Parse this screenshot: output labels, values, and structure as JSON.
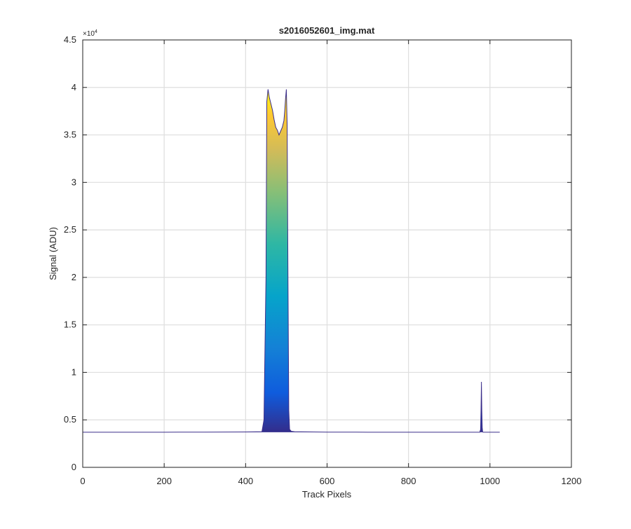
{
  "chart_data": {
    "type": "area",
    "title": "s2016052601_img.mat",
    "xlabel": "Track Pixels",
    "ylabel": "Signal (ADU)",
    "xlim": [
      0,
      1200
    ],
    "ylim": [
      0,
      45000
    ],
    "y_exponent_label": "×10",
    "y_exponent_power": "4",
    "xticks": [
      0,
      200,
      400,
      600,
      800,
      1000,
      1200
    ],
    "xtick_labels": [
      "0",
      "200",
      "400",
      "600",
      "800",
      "1000",
      "1200"
    ],
    "yticks": [
      0,
      5000,
      10000,
      15000,
      20000,
      25000,
      30000,
      35000,
      40000,
      45000
    ],
    "ytick_labels": [
      "0",
      "0.5",
      "1",
      "1.5",
      "2",
      "2.5",
      "3",
      "3.5",
      "4",
      "4.5"
    ],
    "grid": true,
    "colormap": "parula",
    "colors": {
      "baseline": "#3b2e8a",
      "parula_low": "#352a87",
      "parula_mid": "#1fb6b2",
      "parula_high": "#f9fb0e"
    },
    "series": [
      {
        "x": [
          0,
          100,
          200,
          300,
          400,
          440,
          445,
          450,
          452,
          455,
          458,
          462,
          466,
          470,
          474,
          478,
          482,
          486,
          490,
          494,
          496,
          498,
          500,
          502,
          504,
          506,
          508,
          512,
          520,
          600,
          700,
          800,
          900,
          970,
          975,
          977,
          978,
          979,
          980,
          981,
          982,
          983,
          985,
          990,
          1000,
          1024
        ],
        "values": [
          3700,
          3700,
          3700,
          3710,
          3730,
          3750,
          5000,
          20000,
          38500,
          39800,
          39000,
          38300,
          37600,
          36600,
          35800,
          35500,
          35000,
          35400,
          35800,
          36500,
          37500,
          38800,
          39800,
          36000,
          20000,
          6000,
          4000,
          3800,
          3750,
          3710,
          3700,
          3700,
          3700,
          3700,
          3700,
          4000,
          6000,
          9000,
          6000,
          4200,
          3750,
          3700,
          3700,
          3700,
          3700,
          3700
        ]
      }
    ]
  }
}
